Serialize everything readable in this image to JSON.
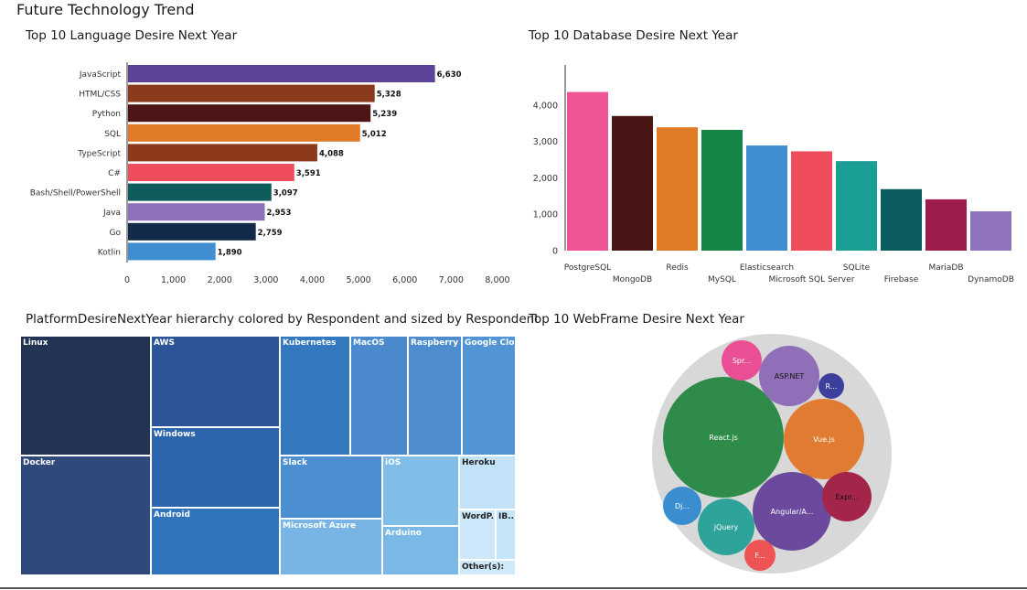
{
  "page": {
    "title": "Future Technology Trend"
  },
  "chart_data": [
    {
      "type": "bar",
      "orientation": "horizontal",
      "title": "Top 10 Language Desire Next Year",
      "categories": [
        "JavaScript",
        "HTML/CSS",
        "Python",
        "SQL",
        "TypeScript",
        "C#",
        "Bash/Shell/PowerShell",
        "Java",
        "Go",
        "Kotlin"
      ],
      "values": [
        6630,
        5328,
        5239,
        5012,
        4088,
        3591,
        3097,
        2953,
        2759,
        1890
      ],
      "value_labels": [
        "6,630",
        "5,328",
        "5,239",
        "5,012",
        "4,088",
        "3,591",
        "3,097",
        "2,953",
        "2,759",
        "1,890"
      ],
      "colors": [
        "#5c4397",
        "#8a3a1d",
        "#4d1515",
        "#e07a27",
        "#8d3a1c",
        "#f04d5c",
        "#0f5c5c",
        "#8d71b8",
        "#142a4a",
        "#3e8ed0"
      ],
      "xlim": [
        0,
        8000
      ],
      "xticks": [
        "0",
        "1,000",
        "2,000",
        "3,000",
        "4,000",
        "5,000",
        "6,000",
        "7,000",
        "8,000"
      ],
      "xlabel": "",
      "ylabel": "",
      "grid": false
    },
    {
      "type": "bar",
      "title": "Top 10 Database Desire Next Year",
      "categories": [
        "PostgreSQL",
        "MongoDB",
        "Redis",
        "MySQL",
        "Elasticsearch",
        "Microsoft SQL Server",
        "SQLite",
        "Firebase",
        "MariaDB",
        "DynamoDB"
      ],
      "values": [
        4360,
        3700,
        3390,
        3320,
        2890,
        2730,
        2460,
        1690,
        1410,
        1080
      ],
      "colors": [
        "#ee5496",
        "#4a1515",
        "#e07a27",
        "#148447",
        "#3e8ed0",
        "#f04d5c",
        "#1a9e96",
        "#0b5c5f",
        "#9c1c4e",
        "#8e72bb"
      ],
      "ylim": [
        0,
        4500
      ],
      "yticks": [
        "0",
        "1,000",
        "2,000",
        "3,000",
        "4,000"
      ],
      "xlabel": "",
      "ylabel": "",
      "grid": false
    },
    {
      "type": "treemap",
      "title": "PlatformDesireNextYear hierarchy colored by Respondent and sized by Respondent",
      "items": [
        {
          "label": "Linux",
          "value": 100
        },
        {
          "label": "Docker",
          "value": 92
        },
        {
          "label": "AWS",
          "value": 62
        },
        {
          "label": "Windows",
          "value": 56
        },
        {
          "label": "Android",
          "value": 46
        },
        {
          "label": "Kubernetes",
          "value": 35
        },
        {
          "label": "MacOS",
          "value": 29
        },
        {
          "label": "Raspberry Pi",
          "value": 27
        },
        {
          "label": "Google Clo...",
          "value": 26
        },
        {
          "label": "Slack",
          "value": 20
        },
        {
          "label": "Microsoft Azure",
          "value": 17
        },
        {
          "label": "iOS",
          "value": 15
        },
        {
          "label": "Arduino",
          "value": 13
        },
        {
          "label": "Heroku",
          "value": 9
        },
        {
          "label": "WordP...",
          "value": 7
        },
        {
          "label": "IB...",
          "value": 4
        },
        {
          "label": "Other(s):",
          "value": 3
        }
      ]
    },
    {
      "type": "bubble",
      "title": "Top 10 WebFrame Desire Next Year",
      "items": [
        {
          "label": "React.js",
          "value": 100,
          "color": "#2e8b4a"
        },
        {
          "label": "Vue.js",
          "value": 58,
          "color": "#e07b31"
        },
        {
          "label": "Angular/A...",
          "value": 56,
          "color": "#6b4a9e"
        },
        {
          "label": "ASP.NET",
          "value": 33,
          "color": "#8f70b8"
        },
        {
          "label": "jQuery",
          "value": 28,
          "color": "#2ea39a"
        },
        {
          "label": "Expr...",
          "value": 22,
          "color": "#a3254a"
        },
        {
          "label": "Dj...",
          "value": 14,
          "color": "#3a8ed0"
        },
        {
          "label": "Spr...",
          "value": 14,
          "color": "#ea4f95"
        },
        {
          "label": "F...",
          "value": 9,
          "color": "#ef5454"
        },
        {
          "label": "R...",
          "value": 5,
          "color": "#3c3f9c"
        }
      ]
    }
  ]
}
